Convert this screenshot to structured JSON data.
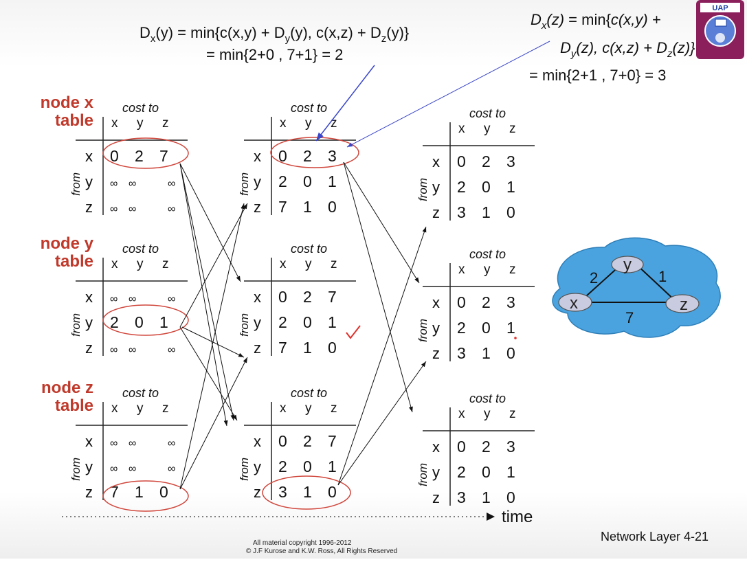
{
  "formula_y": {
    "prefix": "D",
    "prefix_sub": "x",
    "arg": "(y) = min{c(x,y) + D",
    "dy_sub": "y",
    "mid": "(y), c(x,z) + D",
    "dz_sub": "z",
    "end": "(y)}",
    "line2": "= min{2+0 , 7+1} = 2"
  },
  "formula_z": {
    "line1_a": "D",
    "line1_sub": "x",
    "line1_b": "(z)",
    "line1_c": " = min{",
    "line1_d": "c(x,y) +",
    "line2_a": "D",
    "line2_sub": "y",
    "line2_b": "(z), c(x,z) + D",
    "line2_sub2": "z",
    "line2_c": "(z)}",
    "line3": "= min{2+1 , 7+0} = 3"
  },
  "tables": {
    "x": {
      "title1": "node x",
      "title2": "table"
    },
    "y": {
      "title1": "node y",
      "title2": "table"
    },
    "z": {
      "title1": "node z",
      "title2": "table"
    }
  },
  "labels": {
    "cost_to": "cost to",
    "from": "from",
    "col_x": "x",
    "col_y": "y",
    "col_z": "z",
    "row_x": "x",
    "row_y": "y",
    "row_z": "z",
    "inf": "∞",
    "time": "time",
    "footer": "Network Layer  4-21",
    "copyright1": "All material copyright 1996-2012",
    "copyright2": "© J.F Kurose and K.W. Ross, All Rights Reserved"
  },
  "columns": [
    {
      "x": [
        [
          "0",
          "2",
          "7"
        ],
        [
          "∞",
          "∞",
          "∞"
        ],
        [
          "∞",
          "∞",
          "∞"
        ]
      ],
      "y": [
        [
          "∞",
          "∞",
          "∞"
        ],
        [
          "2",
          "0",
          "1"
        ],
        [
          "∞",
          "∞",
          "∞"
        ]
      ],
      "z": [
        [
          "∞",
          "∞",
          "∞"
        ],
        [
          "∞",
          "∞",
          "∞"
        ],
        [
          "7",
          "1",
          "0"
        ]
      ]
    },
    {
      "x": [
        [
          "0",
          "2",
          "3"
        ],
        [
          "2",
          "0",
          "1"
        ],
        [
          "7",
          "1",
          "0"
        ]
      ],
      "y": [
        [
          "0",
          "2",
          "7"
        ],
        [
          "2",
          "0",
          "1"
        ],
        [
          "7",
          "1",
          "0"
        ]
      ],
      "z": [
        [
          "0",
          "2",
          "7"
        ],
        [
          "2",
          "0",
          "1"
        ],
        [
          "3",
          "1",
          "0"
        ]
      ]
    },
    {
      "x": [
        [
          "0",
          "2",
          "3"
        ],
        [
          "2",
          "0",
          "1"
        ],
        [
          "3",
          "1",
          "0"
        ]
      ],
      "y": [
        [
          "0",
          "2",
          "3"
        ],
        [
          "2",
          "0",
          "1"
        ],
        [
          "3",
          "1",
          "0"
        ]
      ],
      "z": [
        [
          "0",
          "2",
          "3"
        ],
        [
          "2",
          "0",
          "1"
        ],
        [
          "3",
          "1",
          "0"
        ]
      ]
    }
  ],
  "network": {
    "nodes": [
      "x",
      "y",
      "z"
    ],
    "edges": [
      {
        "from": "x",
        "to": "y",
        "cost": "2"
      },
      {
        "from": "y",
        "to": "z",
        "cost": "1"
      },
      {
        "from": "x",
        "to": "z",
        "cost": "7"
      }
    ],
    "cloud_color": "#4aa3df"
  },
  "logo": {
    "text": "UAP"
  },
  "colors": {
    "title": "#c0392b",
    "circle": "#d0463b",
    "arrow_blue": "#3a46c8",
    "check": "#e0302a"
  }
}
